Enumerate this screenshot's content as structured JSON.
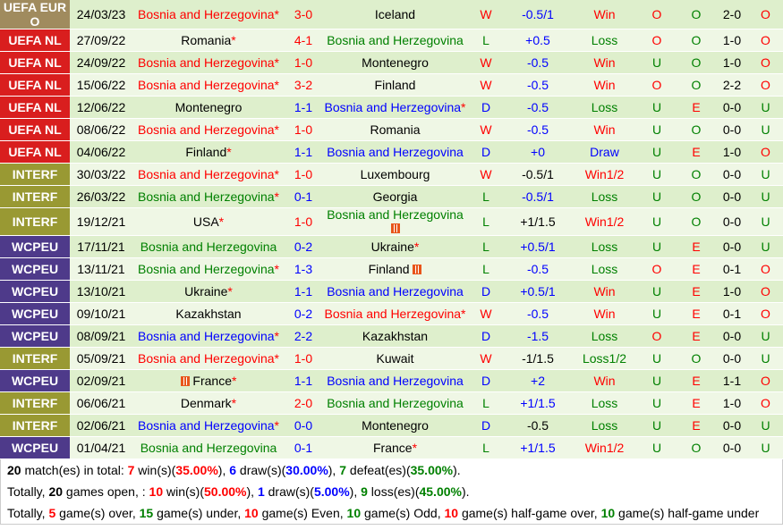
{
  "colors": {
    "league_euro": "#a08b5e",
    "league_nl": "#d91e1e",
    "league_interf": "#999933",
    "league_wcpeu": "#4e3a8a",
    "row_even": "#deefcc",
    "row_odd": "#eff7e5",
    "red": "#ff0000",
    "green": "#008000",
    "blue": "#0000ff"
  },
  "matches": [
    {
      "league": "UEFA EURO",
      "league_line1": "UEFA EUR",
      "league_line2": "O",
      "league_type": "euro",
      "date": "24/03/23",
      "home": "Bosnia and Herzegovina",
      "home_star": "*",
      "home_color": "red",
      "score": "3-0",
      "score_color": "red",
      "away": "Iceland",
      "away_star": "",
      "away_color": "black",
      "result": "W",
      "result_color": "red",
      "handicap": "-0.5/1",
      "hcp_color": "blue",
      "hcp_result": "Win",
      "hcp_res_color": "red",
      "ou": "O",
      "ou_color": "red",
      "oe": "O",
      "oe_color": "green",
      "ht": "2-0",
      "ht_ou": "O",
      "ht_ou_color": "red"
    },
    {
      "league": "UEFA NL",
      "league_type": "nl",
      "date": "27/09/22",
      "home": "Romania",
      "home_star": "*",
      "home_color": "black",
      "score": "4-1",
      "score_color": "red",
      "away": "Bosnia and Herzegovina",
      "away_star": "",
      "away_color": "green",
      "result": "L",
      "result_color": "green",
      "handicap": "+0.5",
      "hcp_color": "blue",
      "hcp_result": "Loss",
      "hcp_res_color": "green",
      "ou": "O",
      "ou_color": "red",
      "oe": "O",
      "oe_color": "green",
      "ht": "1-0",
      "ht_ou": "O",
      "ht_ou_color": "red"
    },
    {
      "league": "UEFA NL",
      "league_type": "nl",
      "date": "24/09/22",
      "home": "Bosnia and Herzegovina",
      "home_star": "*",
      "home_color": "red",
      "score": "1-0",
      "score_color": "red",
      "away": "Montenegro",
      "away_star": "",
      "away_color": "black",
      "result": "W",
      "result_color": "red",
      "handicap": "-0.5",
      "hcp_color": "blue",
      "hcp_result": "Win",
      "hcp_res_color": "red",
      "ou": "U",
      "ou_color": "green",
      "oe": "O",
      "oe_color": "green",
      "ht": "1-0",
      "ht_ou": "O",
      "ht_ou_color": "red"
    },
    {
      "league": "UEFA NL",
      "league_type": "nl",
      "date": "15/06/22",
      "home": "Bosnia and Herzegovina",
      "home_star": "*",
      "home_color": "red",
      "score": "3-2",
      "score_color": "red",
      "away": "Finland",
      "away_star": "",
      "away_color": "black",
      "result": "W",
      "result_color": "red",
      "handicap": "-0.5",
      "hcp_color": "blue",
      "hcp_result": "Win",
      "hcp_res_color": "red",
      "ou": "O",
      "ou_color": "red",
      "oe": "O",
      "oe_color": "green",
      "ht": "2-2",
      "ht_ou": "O",
      "ht_ou_color": "red"
    },
    {
      "league": "UEFA NL",
      "league_type": "nl",
      "date": "12/06/22",
      "home": "Montenegro",
      "home_star": "",
      "home_color": "black",
      "score": "1-1",
      "score_color": "blue",
      "away": "Bosnia and Herzegovina",
      "away_star": "*",
      "away_color": "blue",
      "result": "D",
      "result_color": "blue",
      "handicap": "-0.5",
      "hcp_color": "blue",
      "hcp_result": "Loss",
      "hcp_res_color": "green",
      "ou": "U",
      "ou_color": "green",
      "oe": "E",
      "oe_color": "red",
      "ht": "0-0",
      "ht_ou": "U",
      "ht_ou_color": "green"
    },
    {
      "league": "UEFA NL",
      "league_type": "nl",
      "date": "08/06/22",
      "home": "Bosnia and Herzegovina",
      "home_star": "*",
      "home_color": "red",
      "score": "1-0",
      "score_color": "red",
      "away": "Romania",
      "away_star": "",
      "away_color": "black",
      "result": "W",
      "result_color": "red",
      "handicap": "-0.5",
      "hcp_color": "blue",
      "hcp_result": "Win",
      "hcp_res_color": "red",
      "ou": "U",
      "ou_color": "green",
      "oe": "O",
      "oe_color": "green",
      "ht": "0-0",
      "ht_ou": "U",
      "ht_ou_color": "green"
    },
    {
      "league": "UEFA NL",
      "league_type": "nl",
      "date": "04/06/22",
      "home": "Finland",
      "home_star": "*",
      "home_color": "black",
      "score": "1-1",
      "score_color": "blue",
      "away": "Bosnia and Herzegovina",
      "away_star": "",
      "away_color": "blue",
      "result": "D",
      "result_color": "blue",
      "handicap": "+0",
      "hcp_color": "blue",
      "hcp_result": "Draw",
      "hcp_res_color": "blue",
      "ou": "U",
      "ou_color": "green",
      "oe": "E",
      "oe_color": "red",
      "ht": "1-0",
      "ht_ou": "O",
      "ht_ou_color": "red"
    },
    {
      "league": "INTERF",
      "league_type": "interf",
      "date": "30/03/22",
      "home": "Bosnia and Herzegovina",
      "home_star": "*",
      "home_color": "red",
      "score": "1-0",
      "score_color": "red",
      "away": "Luxembourg",
      "away_star": "",
      "away_color": "black",
      "result": "W",
      "result_color": "red",
      "handicap": "-0.5/1",
      "hcp_color": "black",
      "hcp_result": "Win1/2",
      "hcp_res_color": "red",
      "ou": "U",
      "ou_color": "green",
      "oe": "O",
      "oe_color": "green",
      "ht": "0-0",
      "ht_ou": "U",
      "ht_ou_color": "green"
    },
    {
      "league": "INTERF",
      "league_type": "interf",
      "date": "26/03/22",
      "home": "Bosnia and Herzegovina",
      "home_star": "*",
      "home_color": "green",
      "score": "0-1",
      "score_color": "blue",
      "away": "Georgia",
      "away_star": "",
      "away_color": "black",
      "result": "L",
      "result_color": "green",
      "handicap": "-0.5/1",
      "hcp_color": "blue",
      "hcp_result": "Loss",
      "hcp_res_color": "green",
      "ou": "U",
      "ou_color": "green",
      "oe": "O",
      "oe_color": "green",
      "ht": "0-0",
      "ht_ou": "U",
      "ht_ou_color": "green"
    },
    {
      "league": "INTERF",
      "league_type": "interf",
      "date": "19/12/21",
      "home": "USA",
      "home_star": "*",
      "home_color": "black",
      "score": "1-0",
      "score_color": "red",
      "away": "Bosnia and Herzegovina",
      "away_star": "",
      "away_color": "green",
      "away_redcard": "below",
      "result": "L",
      "result_color": "green",
      "handicap": "+1/1.5",
      "hcp_color": "black",
      "hcp_result": "Win1/2",
      "hcp_res_color": "red",
      "ou": "U",
      "ou_color": "green",
      "oe": "O",
      "oe_color": "green",
      "ht": "0-0",
      "ht_ou": "U",
      "ht_ou_color": "green"
    },
    {
      "league": "WCPEU",
      "league_type": "wcpeu",
      "date": "17/11/21",
      "home": "Bosnia and Herzegovina",
      "home_star": "",
      "home_color": "green",
      "score": "0-2",
      "score_color": "blue",
      "away": "Ukraine",
      "away_star": "*",
      "away_color": "black",
      "result": "L",
      "result_color": "green",
      "handicap": "+0.5/1",
      "hcp_color": "blue",
      "hcp_result": "Loss",
      "hcp_res_color": "green",
      "ou": "U",
      "ou_color": "green",
      "oe": "E",
      "oe_color": "red",
      "ht": "0-0",
      "ht_ou": "U",
      "ht_ou_color": "green"
    },
    {
      "league": "WCPEU",
      "league_type": "wcpeu",
      "date": "13/11/21",
      "home": "Bosnia and Herzegovina",
      "home_star": "*",
      "home_color": "green",
      "score": "1-3",
      "score_color": "blue",
      "away": "Finland",
      "away_star": "",
      "away_color": "black",
      "away_redcard": "inline",
      "result": "L",
      "result_color": "green",
      "handicap": "-0.5",
      "hcp_color": "blue",
      "hcp_result": "Loss",
      "hcp_res_color": "green",
      "ou": "O",
      "ou_color": "red",
      "oe": "E",
      "oe_color": "red",
      "ht": "0-1",
      "ht_ou": "O",
      "ht_ou_color": "red"
    },
    {
      "league": "WCPEU",
      "league_type": "wcpeu",
      "date": "13/10/21",
      "home": "Ukraine",
      "home_star": "*",
      "home_color": "black",
      "score": "1-1",
      "score_color": "blue",
      "away": "Bosnia and Herzegovina",
      "away_star": "",
      "away_color": "blue",
      "result": "D",
      "result_color": "blue",
      "handicap": "+0.5/1",
      "hcp_color": "blue",
      "hcp_result": "Win",
      "hcp_res_color": "red",
      "ou": "U",
      "ou_color": "green",
      "oe": "E",
      "oe_color": "red",
      "ht": "1-0",
      "ht_ou": "O",
      "ht_ou_color": "red"
    },
    {
      "league": "WCPEU",
      "league_type": "wcpeu",
      "date": "09/10/21",
      "home": "Kazakhstan",
      "home_star": "",
      "home_color": "black",
      "score": "0-2",
      "score_color": "blue",
      "away": "Bosnia and Herzegovina",
      "away_star": "*",
      "away_color": "red",
      "result": "W",
      "result_color": "red",
      "handicap": "-0.5",
      "hcp_color": "blue",
      "hcp_result": "Win",
      "hcp_res_color": "red",
      "ou": "U",
      "ou_color": "green",
      "oe": "E",
      "oe_color": "red",
      "ht": "0-1",
      "ht_ou": "O",
      "ht_ou_color": "red"
    },
    {
      "league": "WCPEU",
      "league_type": "wcpeu",
      "date": "08/09/21",
      "home": "Bosnia and Herzegovina",
      "home_star": "*",
      "home_color": "blue",
      "score": "2-2",
      "score_color": "blue",
      "away": "Kazakhstan",
      "away_star": "",
      "away_color": "black",
      "result": "D",
      "result_color": "blue",
      "handicap": "-1.5",
      "hcp_color": "blue",
      "hcp_result": "Loss",
      "hcp_res_color": "green",
      "ou": "O",
      "ou_color": "red",
      "oe": "E",
      "oe_color": "red",
      "ht": "0-0",
      "ht_ou": "U",
      "ht_ou_color": "green"
    },
    {
      "league": "INTERF",
      "league_type": "interf",
      "date": "05/09/21",
      "home": "Bosnia and Herzegovina",
      "home_star": "*",
      "home_color": "red",
      "score": "1-0",
      "score_color": "red",
      "away": "Kuwait",
      "away_star": "",
      "away_color": "black",
      "result": "W",
      "result_color": "red",
      "handicap": "-1/1.5",
      "hcp_color": "black",
      "hcp_result": "Loss1/2",
      "hcp_res_color": "green",
      "ou": "U",
      "ou_color": "green",
      "oe": "O",
      "oe_color": "green",
      "ht": "0-0",
      "ht_ou": "U",
      "ht_ou_color": "green"
    },
    {
      "league": "WCPEU",
      "league_type": "wcpeu",
      "date": "02/09/21",
      "home": "France",
      "home_star": "*",
      "home_color": "black",
      "home_redcard": "before",
      "score": "1-1",
      "score_color": "blue",
      "away": "Bosnia and Herzegovina",
      "away_star": "",
      "away_color": "blue",
      "result": "D",
      "result_color": "blue",
      "handicap": "+2",
      "hcp_color": "blue",
      "hcp_result": "Win",
      "hcp_res_color": "red",
      "ou": "U",
      "ou_color": "green",
      "oe": "E",
      "oe_color": "red",
      "ht": "1-1",
      "ht_ou": "O",
      "ht_ou_color": "red"
    },
    {
      "league": "INTERF",
      "league_type": "interf",
      "date": "06/06/21",
      "home": "Denmark",
      "home_star": "*",
      "home_color": "black",
      "score": "2-0",
      "score_color": "red",
      "away": "Bosnia and Herzegovina",
      "away_star": "",
      "away_color": "green",
      "result": "L",
      "result_color": "green",
      "handicap": "+1/1.5",
      "hcp_color": "blue",
      "hcp_result": "Loss",
      "hcp_res_color": "green",
      "ou": "U",
      "ou_color": "green",
      "oe": "E",
      "oe_color": "red",
      "ht": "1-0",
      "ht_ou": "O",
      "ht_ou_color": "red"
    },
    {
      "league": "INTERF",
      "league_type": "interf",
      "date": "02/06/21",
      "home": "Bosnia and Herzegovina",
      "home_star": "*",
      "home_color": "blue",
      "score": "0-0",
      "score_color": "blue",
      "away": "Montenegro",
      "away_star": "",
      "away_color": "black",
      "result": "D",
      "result_color": "blue",
      "handicap": "-0.5",
      "hcp_color": "black",
      "hcp_result": "Loss",
      "hcp_res_color": "green",
      "ou": "U",
      "ou_color": "green",
      "oe": "E",
      "oe_color": "red",
      "ht": "0-0",
      "ht_ou": "U",
      "ht_ou_color": "green"
    },
    {
      "league": "WCPEU",
      "league_type": "wcpeu",
      "date": "01/04/21",
      "home": "Bosnia and Herzegovina",
      "home_star": "",
      "home_color": "green",
      "score": "0-1",
      "score_color": "blue",
      "away": "France",
      "away_star": "*",
      "away_color": "black",
      "result": "L",
      "result_color": "green",
      "handicap": "+1/1.5",
      "hcp_color": "blue",
      "hcp_result": "Win1/2",
      "hcp_res_color": "red",
      "ou": "U",
      "ou_color": "green",
      "oe": "O",
      "oe_color": "green",
      "ht": "0-0",
      "ht_ou": "U",
      "ht_ou_color": "green"
    }
  ],
  "summary": {
    "line1": [
      {
        "t": "20",
        "c": "black",
        "b": true
      },
      {
        "t": " match(es) in total: "
      },
      {
        "t": "7",
        "c": "red",
        "b": true
      },
      {
        "t": " win(s)("
      },
      {
        "t": "35.00%",
        "c": "red",
        "b": true
      },
      {
        "t": "), "
      },
      {
        "t": "6",
        "c": "blue",
        "b": true
      },
      {
        "t": " draw(s)("
      },
      {
        "t": "30.00%",
        "c": "blue",
        "b": true
      },
      {
        "t": "), "
      },
      {
        "t": "7",
        "c": "green",
        "b": true
      },
      {
        "t": " defeat(es)("
      },
      {
        "t": "35.00%",
        "c": "green",
        "b": true
      },
      {
        "t": ")."
      }
    ],
    "line2": [
      {
        "t": "Totally, "
      },
      {
        "t": "20",
        "c": "black",
        "b": true
      },
      {
        "t": " games open, : "
      },
      {
        "t": "10",
        "c": "red",
        "b": true
      },
      {
        "t": " win(s)("
      },
      {
        "t": "50.00%",
        "c": "red",
        "b": true
      },
      {
        "t": "), "
      },
      {
        "t": "1",
        "c": "blue",
        "b": true
      },
      {
        "t": " draw(s)("
      },
      {
        "t": "5.00%",
        "c": "blue",
        "b": true
      },
      {
        "t": "), "
      },
      {
        "t": "9",
        "c": "green",
        "b": true
      },
      {
        "t": " loss(es)("
      },
      {
        "t": "45.00%",
        "c": "green",
        "b": true
      },
      {
        "t": ")."
      }
    ],
    "line3": [
      {
        "t": "Totally, "
      },
      {
        "t": "5",
        "c": "red",
        "b": true
      },
      {
        "t": " game(s) over, "
      },
      {
        "t": "15",
        "c": "green",
        "b": true
      },
      {
        "t": " game(s) under, "
      },
      {
        "t": "10",
        "c": "red",
        "b": true
      },
      {
        "t": " game(s) Even, "
      },
      {
        "t": "10",
        "c": "green",
        "b": true
      },
      {
        "t": " game(s) Odd, "
      },
      {
        "t": "10",
        "c": "red",
        "b": true
      },
      {
        "t": " game(s) half-game over, "
      },
      {
        "t": "10",
        "c": "green",
        "b": true
      },
      {
        "t": " game(s) half-game under"
      }
    ]
  }
}
